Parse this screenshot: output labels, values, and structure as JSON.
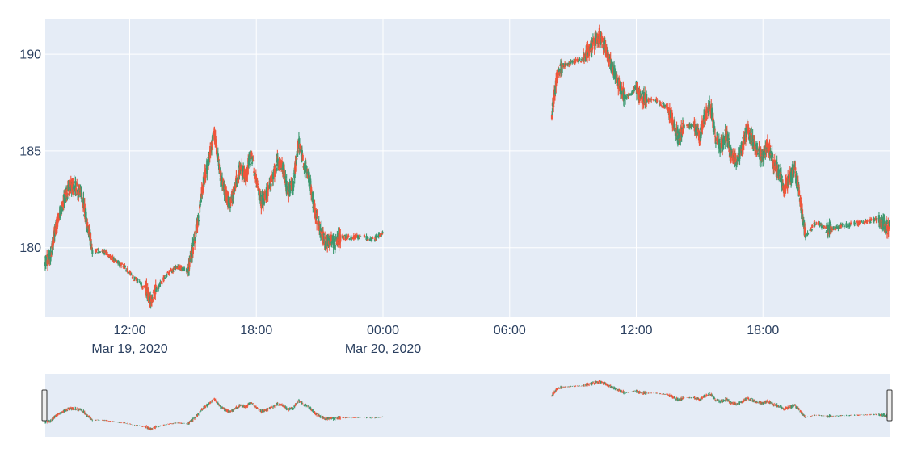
{
  "chart_data": {
    "type": "candlestick",
    "title": "",
    "xlabel": "",
    "ylabel": "",
    "ylim": [
      176.4,
      191.8
    ],
    "xlim": [
      "2020-03-19 08:00",
      "2020-03-21 00:00"
    ],
    "y_ticks": [
      180,
      185,
      190
    ],
    "y_tick_labels": [
      "180",
      "185",
      "190"
    ],
    "x_ticks": [
      "2020-03-19 12:00",
      "2020-03-19 18:00",
      "2020-03-20 00:00",
      "2020-03-20 06:00",
      "2020-03-20 12:00",
      "2020-03-20 18:00"
    ],
    "x_tick_labels": [
      "12:00",
      "18:00",
      "00:00",
      "06:00",
      "12:00",
      "18:00"
    ],
    "x_tick_sublabels": [
      "Mar 19, 2020",
      "",
      "Mar 20, 2020",
      "",
      "",
      ""
    ],
    "grid": true,
    "rangeslider": true,
    "colors": {
      "increasing": "#3d9970",
      "decreasing": "#ef553b",
      "plot_bg": "#e5ecf6",
      "grid": "#ffffff",
      "tick_text": "#2a3f5f"
    },
    "price_path": [
      [
        "2020-03-19 08:00",
        179.2
      ],
      [
        "2020-03-19 08:15",
        179.6
      ],
      [
        "2020-03-19 08:30",
        181.0
      ],
      [
        "2020-03-19 08:45",
        182.0
      ],
      [
        "2020-03-19 09:00",
        182.8
      ],
      [
        "2020-03-19 09:15",
        183.2
      ],
      [
        "2020-03-19 09:30",
        183.1
      ],
      [
        "2020-03-19 09:45",
        182.6
      ],
      [
        "2020-03-19 10:00",
        181.2
      ],
      [
        "2020-03-19 10:15",
        179.9
      ],
      [
        "2020-03-19 10:45",
        179.8
      ],
      [
        "2020-03-19 11:15",
        179.4
      ],
      [
        "2020-03-19 11:45",
        179.0
      ],
      [
        "2020-03-19 12:15",
        178.4
      ],
      [
        "2020-03-19 12:45",
        177.9
      ],
      [
        "2020-03-19 13:00",
        177.3
      ],
      [
        "2020-03-19 13:15",
        177.8
      ],
      [
        "2020-03-19 13:45",
        178.6
      ],
      [
        "2020-03-19 14:15",
        179.0
      ],
      [
        "2020-03-19 14:45",
        178.8
      ],
      [
        "2020-03-19 15:00",
        180.0
      ],
      [
        "2020-03-19 15:15",
        181.5
      ],
      [
        "2020-03-19 15:30",
        183.5
      ],
      [
        "2020-03-19 15:45",
        184.5
      ],
      [
        "2020-03-19 16:00",
        186.0
      ],
      [
        "2020-03-19 16:15",
        184.0
      ],
      [
        "2020-03-19 16:30",
        183.0
      ],
      [
        "2020-03-19 16:45",
        182.2
      ],
      [
        "2020-03-19 17:00",
        183.2
      ],
      [
        "2020-03-19 17:15",
        184.2
      ],
      [
        "2020-03-19 17:30",
        183.6
      ],
      [
        "2020-03-19 17:45",
        184.8
      ],
      [
        "2020-03-19 18:00",
        183.4
      ],
      [
        "2020-03-19 18:15",
        182.3
      ],
      [
        "2020-03-19 18:30",
        182.8
      ],
      [
        "2020-03-19 18:45",
        183.6
      ],
      [
        "2020-03-19 19:00",
        184.4
      ],
      [
        "2020-03-19 19:15",
        184.2
      ],
      [
        "2020-03-19 19:30",
        182.8
      ],
      [
        "2020-03-19 19:45",
        183.3
      ],
      [
        "2020-03-19 20:00",
        185.5
      ],
      [
        "2020-03-19 20:15",
        184.4
      ],
      [
        "2020-03-19 20:30",
        183.6
      ],
      [
        "2020-03-19 20:45",
        182.0
      ],
      [
        "2020-03-19 21:00",
        181.0
      ],
      [
        "2020-03-19 21:15",
        180.3
      ],
      [
        "2020-03-19 21:30",
        180.4
      ],
      [
        "2020-03-19 21:45",
        180.2
      ],
      [
        "2020-03-19 22:00",
        180.6
      ],
      [
        "2020-03-19 22:30",
        180.5
      ],
      [
        "2020-03-19 23:00",
        180.6
      ],
      [
        "2020-03-19 23:30",
        180.4
      ],
      [
        "2020-03-20 00:00",
        180.8
      ],
      [
        "2020-03-20 08:00",
        187.0
      ],
      [
        "2020-03-20 08:15",
        188.9
      ],
      [
        "2020-03-20 08:30",
        189.4
      ],
      [
        "2020-03-20 09:00",
        189.6
      ],
      [
        "2020-03-20 09:30",
        189.8
      ],
      [
        "2020-03-20 09:45",
        190.2
      ],
      [
        "2020-03-20 10:00",
        190.6
      ],
      [
        "2020-03-20 10:15",
        190.9
      ],
      [
        "2020-03-20 10:30",
        190.5
      ],
      [
        "2020-03-20 10:45",
        189.5
      ],
      [
        "2020-03-20 11:00",
        189.0
      ],
      [
        "2020-03-20 11:15",
        188.2
      ],
      [
        "2020-03-20 11:30",
        187.7
      ],
      [
        "2020-03-20 12:00",
        188.3
      ],
      [
        "2020-03-20 12:15",
        187.8
      ],
      [
        "2020-03-20 12:30",
        187.6
      ],
      [
        "2020-03-20 13:00",
        187.6
      ],
      [
        "2020-03-20 13:30",
        187.2
      ],
      [
        "2020-03-20 13:45",
        186.5
      ],
      [
        "2020-03-20 14:00",
        185.6
      ],
      [
        "2020-03-20 14:15",
        186.3
      ],
      [
        "2020-03-20 14:45",
        186.3
      ],
      [
        "2020-03-20 15:00",
        185.7
      ],
      [
        "2020-03-20 15:15",
        186.8
      ],
      [
        "2020-03-20 15:30",
        187.4
      ],
      [
        "2020-03-20 15:45",
        185.8
      ],
      [
        "2020-03-20 16:00",
        185.2
      ],
      [
        "2020-03-20 16:15",
        185.9
      ],
      [
        "2020-03-20 16:30",
        184.8
      ],
      [
        "2020-03-20 16:45",
        184.4
      ],
      [
        "2020-03-20 17:00",
        185.2
      ],
      [
        "2020-03-20 17:15",
        186.1
      ],
      [
        "2020-03-20 17:30",
        185.6
      ],
      [
        "2020-03-20 17:45",
        185.0
      ],
      [
        "2020-03-20 18:00",
        184.7
      ],
      [
        "2020-03-20 18:15",
        185.3
      ],
      [
        "2020-03-20 18:30",
        184.4
      ],
      [
        "2020-03-20 18:45",
        184.0
      ],
      [
        "2020-03-20 19:00",
        183.1
      ],
      [
        "2020-03-20 19:15",
        183.6
      ],
      [
        "2020-03-20 19:30",
        184.0
      ],
      [
        "2020-03-20 19:45",
        182.6
      ],
      [
        "2020-03-20 20:00",
        180.6
      ],
      [
        "2020-03-20 20:30",
        181.3
      ],
      [
        "2020-03-20 21:00",
        181.0
      ],
      [
        "2020-03-20 21:15",
        181.0
      ],
      [
        "2020-03-20 23:30",
        181.5
      ],
      [
        "2020-03-20 23:45",
        181.2
      ],
      [
        "2020-03-21 00:00",
        181.0
      ]
    ]
  }
}
